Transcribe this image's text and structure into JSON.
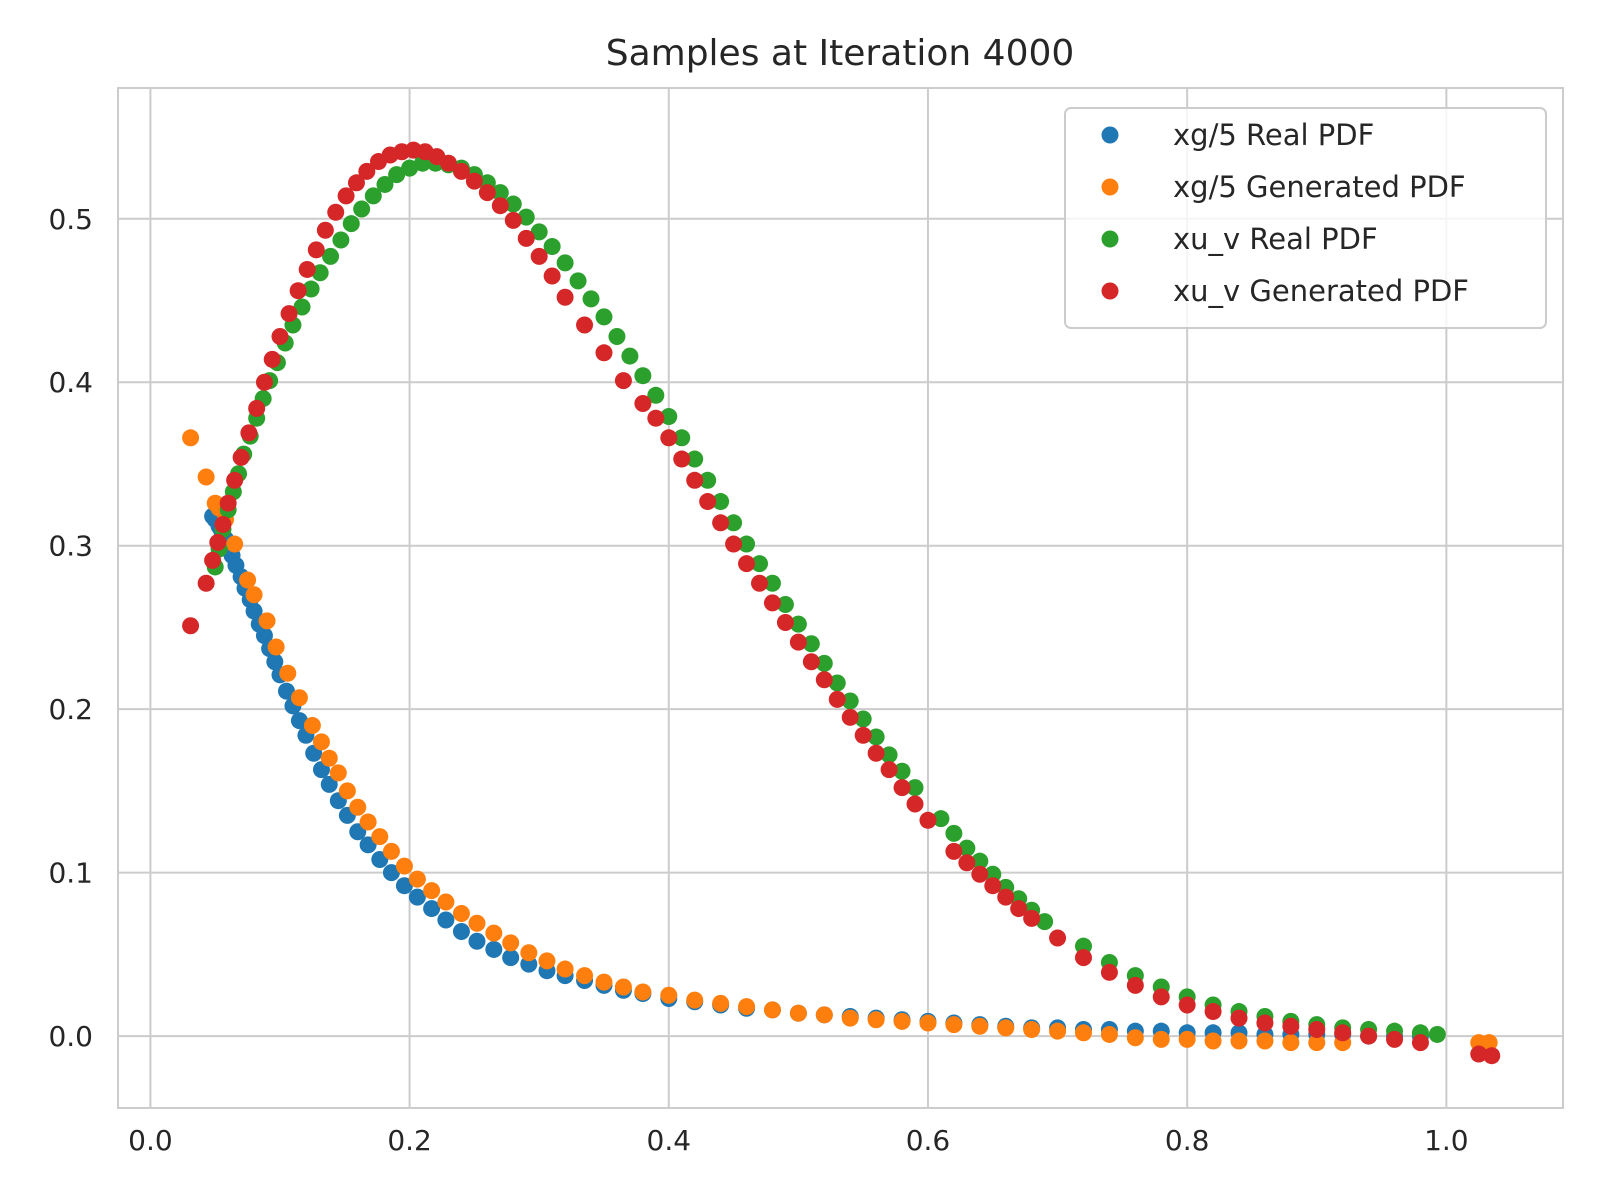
{
  "chart_data": {
    "type": "scatter",
    "title": "Samples at Iteration 4000",
    "xlabel": "",
    "ylabel": "",
    "xlim": [
      -0.025,
      1.09
    ],
    "ylim": [
      -0.044,
      0.58
    ],
    "xticks": [
      0.0,
      0.2,
      0.4,
      0.6,
      0.8,
      1.0
    ],
    "xtick_labels": [
      "0.0",
      "0.2",
      "0.4",
      "0.6",
      "0.8",
      "1.0"
    ],
    "yticks": [
      0.0,
      0.1,
      0.2,
      0.3,
      0.4,
      0.5
    ],
    "ytick_labels": [
      "0.0",
      "0.1",
      "0.2",
      "0.3",
      "0.4",
      "0.5"
    ],
    "grid": true,
    "legend_position": "top-right",
    "series": [
      {
        "name": "xg/5 Real PDF",
        "color": "#1f77b4",
        "x": [
          0.048,
          0.05,
          0.053,
          0.055,
          0.058,
          0.06,
          0.063,
          0.066,
          0.07,
          0.073,
          0.077,
          0.08,
          0.084,
          0.088,
          0.092,
          0.096,
          0.1,
          0.105,
          0.11,
          0.115,
          0.12,
          0.126,
          0.132,
          0.138,
          0.145,
          0.152,
          0.16,
          0.168,
          0.177,
          0.186,
          0.196,
          0.206,
          0.217,
          0.228,
          0.24,
          0.252,
          0.265,
          0.278,
          0.292,
          0.306,
          0.32,
          0.335,
          0.35,
          0.365,
          0.38,
          0.4,
          0.42,
          0.44,
          0.46,
          0.48,
          0.5,
          0.52,
          0.54,
          0.56,
          0.58,
          0.6,
          0.62,
          0.64,
          0.66,
          0.68,
          0.7,
          0.72,
          0.74,
          0.76,
          0.78,
          0.8,
          0.82,
          0.84,
          0.86,
          0.88,
          0.9,
          0.92,
          0.94,
          0.96,
          0.98
        ],
        "y": [
          0.318,
          0.316,
          0.312,
          0.309,
          0.304,
          0.299,
          0.294,
          0.288,
          0.281,
          0.274,
          0.267,
          0.26,
          0.252,
          0.245,
          0.237,
          0.229,
          0.221,
          0.211,
          0.202,
          0.193,
          0.184,
          0.173,
          0.163,
          0.154,
          0.144,
          0.135,
          0.125,
          0.117,
          0.108,
          0.1,
          0.092,
          0.085,
          0.078,
          0.071,
          0.064,
          0.058,
          0.053,
          0.048,
          0.044,
          0.04,
          0.037,
          0.034,
          0.031,
          0.028,
          0.026,
          0.023,
          0.021,
          0.019,
          0.017,
          0.016,
          0.014,
          0.013,
          0.012,
          0.011,
          0.01,
          0.009,
          0.008,
          0.007,
          0.006,
          0.005,
          0.005,
          0.004,
          0.004,
          0.003,
          0.003,
          0.002,
          0.002,
          0.002,
          0.001,
          0.001,
          0.001,
          0.001,
          0.0,
          0.0,
          0.0
        ]
      },
      {
        "name": "xg/5 Generated PDF",
        "color": "#ff7f0e",
        "x": [
          0.031,
          0.043,
          0.05,
          0.053,
          0.058,
          0.065,
          0.075,
          0.08,
          0.09,
          0.097,
          0.106,
          0.115,
          0.125,
          0.132,
          0.138,
          0.145,
          0.152,
          0.16,
          0.168,
          0.177,
          0.186,
          0.196,
          0.206,
          0.217,
          0.228,
          0.24,
          0.252,
          0.265,
          0.278,
          0.292,
          0.306,
          0.32,
          0.335,
          0.35,
          0.365,
          0.38,
          0.4,
          0.42,
          0.44,
          0.46,
          0.48,
          0.5,
          0.52,
          0.54,
          0.56,
          0.58,
          0.6,
          0.62,
          0.64,
          0.66,
          0.68,
          0.7,
          0.72,
          0.74,
          0.76,
          0.78,
          0.8,
          0.82,
          0.84,
          0.86,
          0.88,
          0.9,
          0.92,
          1.025,
          1.033
        ],
        "y": [
          0.366,
          0.342,
          0.326,
          0.323,
          0.316,
          0.301,
          0.279,
          0.27,
          0.254,
          0.238,
          0.222,
          0.207,
          0.19,
          0.18,
          0.17,
          0.161,
          0.15,
          0.14,
          0.131,
          0.122,
          0.113,
          0.104,
          0.096,
          0.089,
          0.082,
          0.075,
          0.069,
          0.063,
          0.057,
          0.051,
          0.046,
          0.041,
          0.037,
          0.033,
          0.03,
          0.027,
          0.025,
          0.022,
          0.02,
          0.018,
          0.016,
          0.014,
          0.013,
          0.011,
          0.01,
          0.009,
          0.008,
          0.007,
          0.006,
          0.005,
          0.004,
          0.003,
          0.002,
          0.001,
          -0.001,
          -0.002,
          -0.002,
          -0.003,
          -0.003,
          -0.003,
          -0.004,
          -0.004,
          -0.004,
          -0.004,
          -0.004
        ]
      },
      {
        "name": "xu_v Real PDF",
        "color": "#2ca02c",
        "x": [
          0.05,
          0.053,
          0.056,
          0.06,
          0.064,
          0.068,
          0.072,
          0.077,
          0.082,
          0.087,
          0.092,
          0.098,
          0.104,
          0.11,
          0.117,
          0.124,
          0.131,
          0.139,
          0.147,
          0.155,
          0.163,
          0.172,
          0.181,
          0.19,
          0.2,
          0.21,
          0.22,
          0.23,
          0.24,
          0.25,
          0.26,
          0.27,
          0.28,
          0.29,
          0.3,
          0.31,
          0.32,
          0.33,
          0.34,
          0.35,
          0.36,
          0.37,
          0.38,
          0.39,
          0.4,
          0.41,
          0.42,
          0.43,
          0.44,
          0.45,
          0.46,
          0.47,
          0.48,
          0.49,
          0.5,
          0.51,
          0.52,
          0.53,
          0.54,
          0.55,
          0.56,
          0.57,
          0.58,
          0.59,
          0.61,
          0.62,
          0.63,
          0.64,
          0.65,
          0.66,
          0.67,
          0.68,
          0.69,
          0.72,
          0.74,
          0.76,
          0.78,
          0.8,
          0.82,
          0.84,
          0.86,
          0.88,
          0.9,
          0.92,
          0.94,
          0.96,
          0.98,
          0.993
        ],
        "y": [
          0.287,
          0.298,
          0.31,
          0.322,
          0.333,
          0.344,
          0.356,
          0.367,
          0.378,
          0.39,
          0.401,
          0.412,
          0.424,
          0.435,
          0.446,
          0.457,
          0.467,
          0.477,
          0.487,
          0.497,
          0.506,
          0.514,
          0.521,
          0.527,
          0.531,
          0.534,
          0.534,
          0.533,
          0.531,
          0.527,
          0.522,
          0.516,
          0.509,
          0.501,
          0.492,
          0.483,
          0.473,
          0.462,
          0.451,
          0.44,
          0.428,
          0.416,
          0.404,
          0.392,
          0.379,
          0.366,
          0.353,
          0.34,
          0.327,
          0.314,
          0.301,
          0.289,
          0.277,
          0.264,
          0.252,
          0.24,
          0.228,
          0.216,
          0.205,
          0.194,
          0.183,
          0.172,
          0.162,
          0.152,
          0.133,
          0.124,
          0.115,
          0.107,
          0.099,
          0.091,
          0.084,
          0.077,
          0.07,
          0.055,
          0.045,
          0.037,
          0.03,
          0.024,
          0.019,
          0.015,
          0.012,
          0.009,
          0.007,
          0.005,
          0.004,
          0.003,
          0.002,
          0.001
        ]
      },
      {
        "name": "xu_v Generated PDF",
        "color": "#d62728",
        "x": [
          0.031,
          0.043,
          0.048,
          0.052,
          0.056,
          0.06,
          0.065,
          0.07,
          0.076,
          0.082,
          0.088,
          0.094,
          0.1,
          0.107,
          0.114,
          0.121,
          0.128,
          0.135,
          0.143,
          0.151,
          0.159,
          0.167,
          0.176,
          0.185,
          0.194,
          0.203,
          0.212,
          0.221,
          0.23,
          0.24,
          0.25,
          0.26,
          0.27,
          0.28,
          0.29,
          0.3,
          0.31,
          0.32,
          0.335,
          0.35,
          0.365,
          0.38,
          0.39,
          0.4,
          0.41,
          0.42,
          0.43,
          0.44,
          0.45,
          0.46,
          0.47,
          0.48,
          0.49,
          0.5,
          0.51,
          0.52,
          0.53,
          0.54,
          0.55,
          0.56,
          0.57,
          0.58,
          0.59,
          0.6,
          0.62,
          0.63,
          0.64,
          0.65,
          0.66,
          0.67,
          0.68,
          0.7,
          0.72,
          0.74,
          0.76,
          0.78,
          0.8,
          0.82,
          0.84,
          0.86,
          0.88,
          0.9,
          0.92,
          0.94,
          0.96,
          0.98,
          1.025,
          1.035
        ],
        "y": [
          0.251,
          0.277,
          0.291,
          0.302,
          0.313,
          0.326,
          0.34,
          0.354,
          0.369,
          0.384,
          0.4,
          0.414,
          0.428,
          0.442,
          0.456,
          0.469,
          0.481,
          0.493,
          0.504,
          0.514,
          0.522,
          0.529,
          0.535,
          0.539,
          0.541,
          0.542,
          0.541,
          0.538,
          0.534,
          0.529,
          0.523,
          0.516,
          0.508,
          0.499,
          0.488,
          0.477,
          0.465,
          0.452,
          0.435,
          0.418,
          0.401,
          0.387,
          0.378,
          0.366,
          0.353,
          0.34,
          0.327,
          0.314,
          0.301,
          0.289,
          0.277,
          0.265,
          0.253,
          0.241,
          0.229,
          0.218,
          0.206,
          0.195,
          0.184,
          0.173,
          0.163,
          0.152,
          0.142,
          0.132,
          0.113,
          0.106,
          0.099,
          0.092,
          0.085,
          0.078,
          0.072,
          0.06,
          0.048,
          0.039,
          0.031,
          0.024,
          0.019,
          0.015,
          0.011,
          0.008,
          0.006,
          0.004,
          0.002,
          0.0,
          -0.002,
          -0.004,
          -0.011,
          -0.012
        ]
      }
    ]
  }
}
